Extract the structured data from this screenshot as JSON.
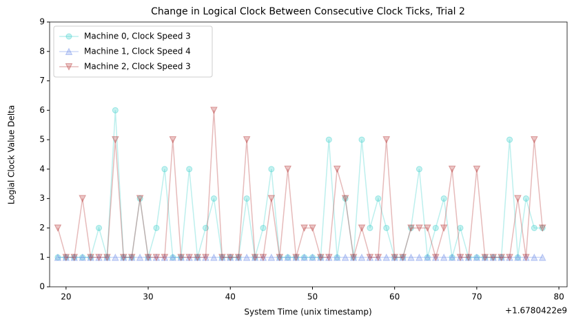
{
  "chart_data": {
    "type": "line",
    "title": "Change in Logical Clock Between Consecutive Clock Ticks, Trial 2",
    "x_label": "System Time (unix timestamp)",
    "y_label": "Logial Clock Value Delta",
    "x_offset_label": "+1.6780422e9",
    "x": [
      19,
      20,
      21,
      22,
      23,
      24,
      25,
      26,
      27,
      28,
      29,
      30,
      31,
      32,
      33,
      34,
      35,
      36,
      37,
      38,
      39,
      40,
      41,
      42,
      43,
      44,
      45,
      46,
      47,
      48,
      49,
      50,
      51,
      52,
      53,
      54,
      55,
      56,
      57,
      58,
      59,
      60,
      61,
      62,
      63,
      64,
      65,
      66,
      67,
      68,
      69,
      70,
      71,
      72,
      73,
      74,
      75,
      76,
      77,
      78
    ],
    "series": [
      {
        "name": "Machine 0, Clock Speed 3",
        "color": "#3fd0cc",
        "marker": "circle",
        "values": [
          1,
          1,
          1,
          1,
          1,
          2,
          1,
          6,
          1,
          1,
          3,
          1,
          2,
          4,
          1,
          1,
          4,
          1,
          2,
          3,
          1,
          1,
          1,
          3,
          1,
          2,
          4,
          1,
          1,
          1,
          1,
          1,
          1,
          5,
          1,
          3,
          1,
          5,
          2,
          3,
          2,
          1,
          1,
          2,
          4,
          1,
          2,
          3,
          1,
          2,
          1,
          1,
          1,
          1,
          1,
          5,
          1,
          3,
          2,
          2
        ]
      },
      {
        "name": "Machine 1, Clock Speed 4",
        "color": "#6f8fe8",
        "marker": "triangle-up",
        "values": [
          1,
          1,
          1,
          1,
          1,
          1,
          1,
          1,
          1,
          1,
          1,
          1,
          1,
          1,
          1,
          1,
          1,
          1,
          1,
          1,
          1,
          1,
          1,
          1,
          1,
          1,
          1,
          1,
          1,
          1,
          1,
          1,
          1,
          1,
          1,
          1,
          1,
          1,
          1,
          1,
          1,
          1,
          1,
          1,
          1,
          1,
          1,
          1,
          1,
          1,
          1,
          1,
          1,
          1,
          1,
          1,
          1,
          1,
          1,
          1
        ]
      },
      {
        "name": "Machine 2, Clock Speed 3",
        "color": "#b83a3a",
        "marker": "triangle-down",
        "values": [
          2,
          1,
          1,
          3,
          1,
          1,
          1,
          5,
          1,
          1,
          3,
          1,
          1,
          1,
          5,
          1,
          1,
          1,
          1,
          6,
          1,
          1,
          1,
          5,
          1,
          1,
          3,
          1,
          4,
          1,
          2,
          2,
          1,
          1,
          4,
          3,
          1,
          2,
          1,
          1,
          5,
          1,
          1,
          2,
          2,
          2,
          1,
          2,
          4,
          1,
          1,
          4,
          1,
          1,
          1,
          1,
          3,
          1,
          5,
          2
        ]
      }
    ],
    "xlim": [
      18,
      81
    ],
    "xticks": [
      20,
      30,
      40,
      50,
      60,
      70,
      80
    ],
    "ylim": [
      0,
      9
    ],
    "yticks": [
      0,
      1,
      2,
      3,
      4,
      5,
      6,
      7,
      8,
      9
    ],
    "legend": "upper left"
  }
}
